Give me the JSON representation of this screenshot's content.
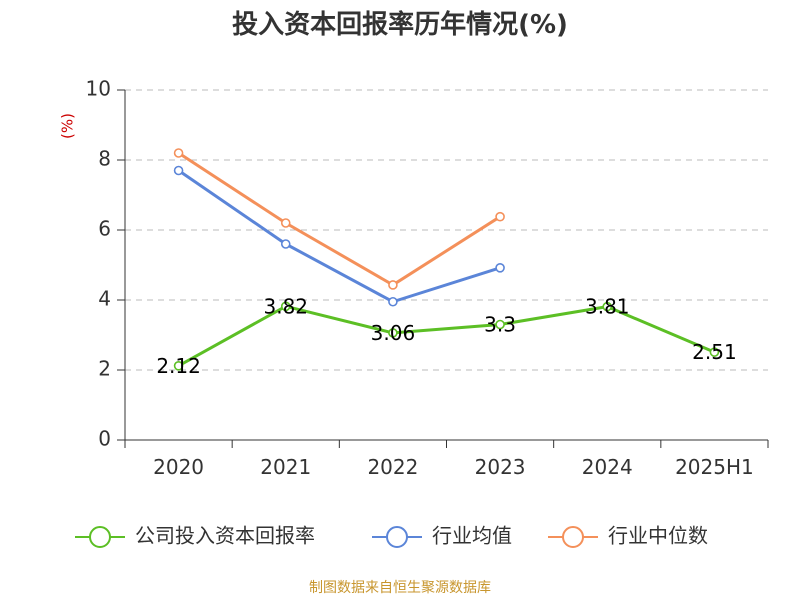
{
  "chart_data": {
    "type": "line",
    "title": "投入资本回报率历年情况(%)",
    "ylabel": "(%)",
    "xlabel": "",
    "categories": [
      "2020",
      "2021",
      "2022",
      "2023",
      "2024",
      "2025H1"
    ],
    "ylim": [
      0,
      10
    ],
    "yticks": [
      "0",
      "2",
      "4",
      "6",
      "8",
      "10"
    ],
    "grid": true,
    "legend_position": "bottom",
    "series": [
      {
        "name": "公司投入资本回报率",
        "color": "#5cbf25",
        "values": [
          2.12,
          3.82,
          3.06,
          3.3,
          3.81,
          2.51
        ],
        "labels": [
          "2.12",
          "3.82",
          "3.06",
          "3.3",
          "3.81",
          "2.51"
        ]
      },
      {
        "name": "行业均值",
        "color": "#5b85d8",
        "values": [
          7.7,
          5.6,
          3.95,
          4.92,
          null,
          null
        ]
      },
      {
        "name": "行业中位数",
        "color": "#f4905a",
        "values": [
          8.2,
          6.2,
          4.43,
          6.38,
          null,
          null
        ]
      }
    ]
  },
  "source": "制图数据来自恒生聚源数据库"
}
